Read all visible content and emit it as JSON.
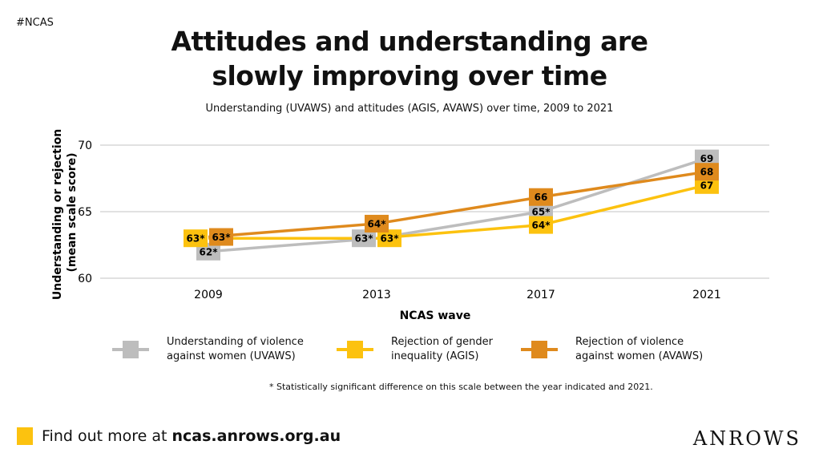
{
  "hashtag": "#NCAS",
  "title_line1": "Attitudes and understanding are",
  "title_line2": "slowly improving over time",
  "chart_data": {
    "type": "line",
    "subtitle": "Understanding (UVAWS) and attitudes (AGIS, AVAWS) over time, 2009 to 2021",
    "xlabel": "NCAS wave",
    "ylabel_line1": "Understanding or rejection",
    "ylabel_line2": "(mean scale score)",
    "categories": [
      "2009",
      "2013",
      "2017",
      "2021"
    ],
    "ylim": [
      60,
      70
    ],
    "yticks": [
      "60",
      "65",
      "70"
    ],
    "grid": true,
    "legend_position": "bottom",
    "series": [
      {
        "name": "Understanding of violence against women (UVAWS)",
        "legend_line1": "Understanding of violence",
        "legend_line2": "against women (UVAWS)",
        "color": "#bdbdbd",
        "values": [
          62,
          63,
          65,
          69
        ],
        "labels": [
          "62*",
          "63*",
          "65*",
          "69"
        ]
      },
      {
        "name": "Rejection of gender inequality (AGIS)",
        "legend_line1": "Rejection of gender",
        "legend_line2": "inequality (AGIS)",
        "color": "#fcc20f",
        "values": [
          63,
          63,
          64,
          67
        ],
        "labels": [
          "63*",
          "63*",
          "64*",
          "67"
        ]
      },
      {
        "name": "Rejection of violence against women (AVAWS)",
        "legend_line1": "Rejection of violence",
        "legend_line2": "against women (AVAWS)",
        "color": "#df8a1d",
        "values": [
          63.1,
          64.1,
          66.1,
          68
        ],
        "labels": [
          "63*",
          "64*",
          "66",
          "68"
        ]
      }
    ],
    "footnote": "* Statistically significant difference on this scale between the year indicated and 2021."
  },
  "footer": {
    "prefix": "Find out more at ",
    "link": "ncas.anrows.org.au",
    "accent": "#fcc20f"
  },
  "logo": "ANROWS"
}
